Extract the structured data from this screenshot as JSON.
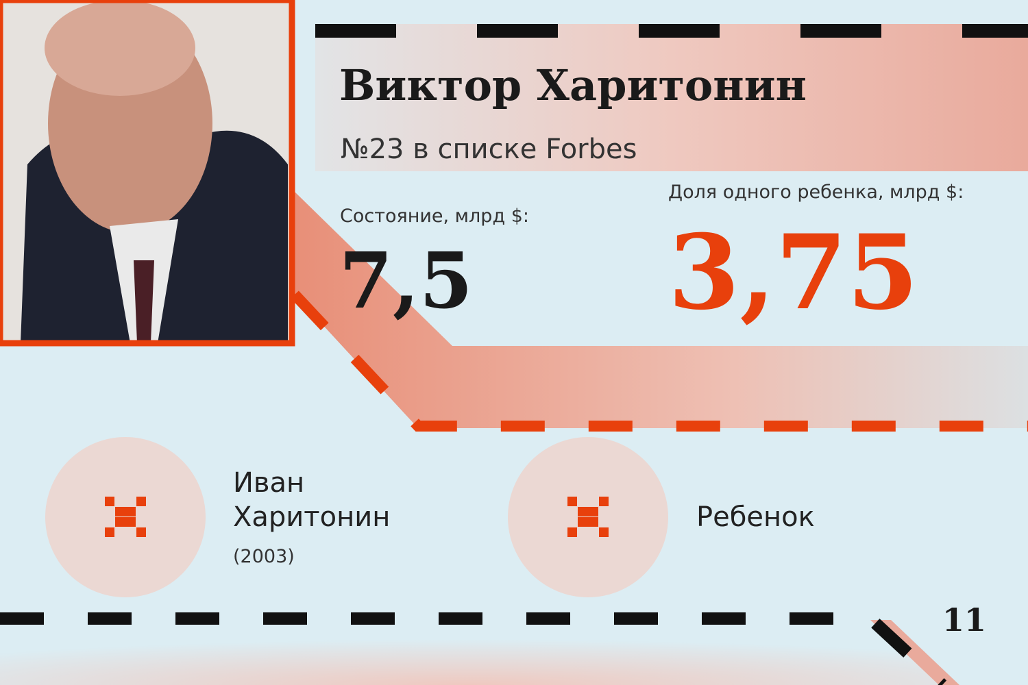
{
  "header": {
    "name": "Виктор Харитонин",
    "rank": "№23 в списке Forbes"
  },
  "stats": {
    "wealth": {
      "label": "Состояние, млрд $:",
      "value": "7,5"
    },
    "share": {
      "label": "Доля одного ребенка, млрд $:",
      "value": "3,75"
    }
  },
  "children": [
    {
      "name": "Иван Харитонин",
      "year": "(2003)"
    },
    {
      "name": "Ребенок"
    }
  ],
  "page_number": "11"
}
